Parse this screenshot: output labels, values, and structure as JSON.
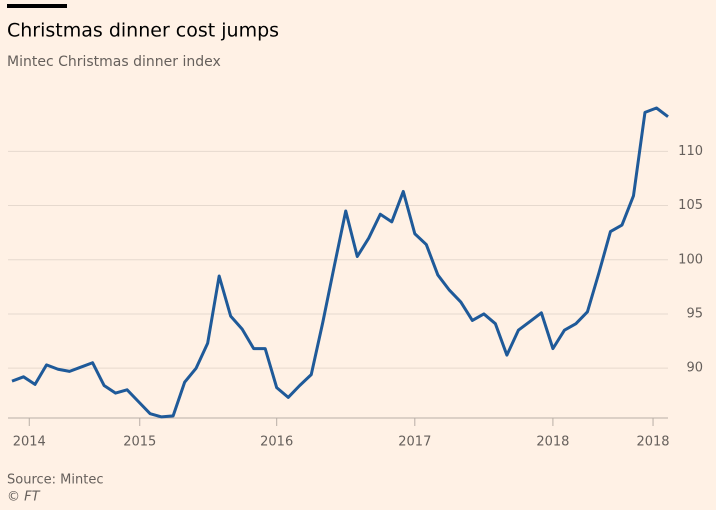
{
  "chart_data": {
    "type": "line",
    "title": "Christmas dinner cost jumps",
    "subtitle": "Mintec Christmas dinner index",
    "source": "Source: Mintec",
    "credit": "© FT",
    "x": [
      0,
      1,
      2,
      3,
      4,
      5,
      6,
      7,
      8,
      9,
      10,
      11,
      12,
      13,
      14,
      15,
      16,
      17,
      18,
      19,
      20,
      21,
      22,
      23,
      24,
      25,
      26,
      27,
      28,
      29,
      30,
      31,
      32,
      33,
      34,
      35,
      36,
      37,
      38,
      39,
      40,
      41,
      42,
      43,
      44,
      45,
      46,
      47,
      48,
      49,
      50,
      51,
      52,
      53,
      54,
      55,
      56,
      57
    ],
    "series": [
      {
        "name": "Mintec Christmas dinner index",
        "color": "#1f5a99",
        "values": [
          88.8,
          89.2,
          88.5,
          90.3,
          89.9,
          89.7,
          90.1,
          90.5,
          88.4,
          87.7,
          88.0,
          86.9,
          85.8,
          85.5,
          85.6,
          88.7,
          90.0,
          92.3,
          98.5,
          94.8,
          93.6,
          91.8,
          91.8,
          88.2,
          87.3,
          88.4,
          89.4,
          94.2,
          99.4,
          104.5,
          100.3,
          102.0,
          104.2,
          103.5,
          106.3,
          102.4,
          101.4,
          98.6,
          97.2,
          96.1,
          94.4,
          95.0,
          94.1,
          91.2,
          93.5,
          94.3,
          95.1,
          91.8,
          93.5,
          94.1,
          95.2,
          98.8,
          102.6,
          103.2,
          105.9,
          113.6,
          114.0,
          113.2
        ]
      }
    ],
    "xlim": [
      0,
      57
    ],
    "xticks": [
      {
        "value": 1.5,
        "label": "2014"
      },
      {
        "value": 11.1,
        "label": "2015"
      },
      {
        "value": 23,
        "label": "2016"
      },
      {
        "value": 35,
        "label": "2017"
      },
      {
        "value": 47,
        "label": "2018"
      },
      {
        "value": 55.7,
        "label": "2018"
      }
    ],
    "ylim": [
      85.4,
      115.2
    ],
    "yticks": [
      90,
      95,
      100,
      105,
      110
    ],
    "grid": true
  }
}
